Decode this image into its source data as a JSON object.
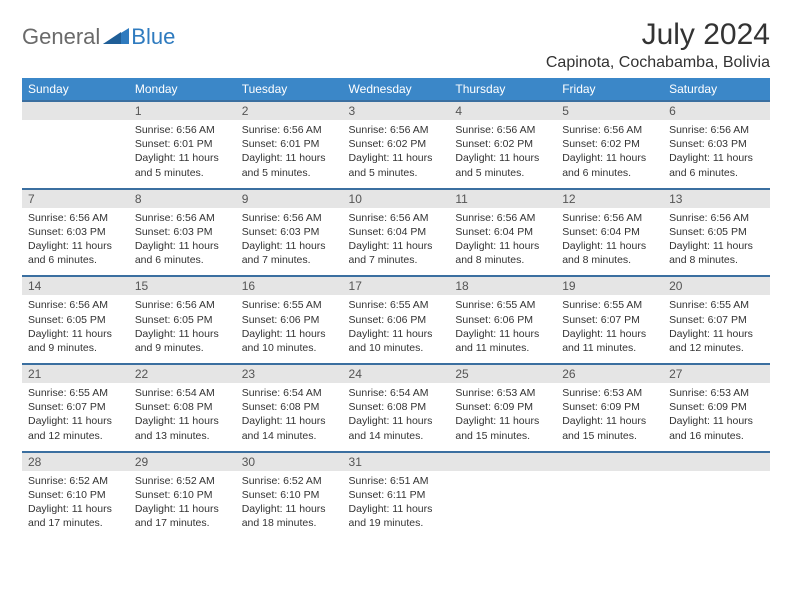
{
  "brand": {
    "word1": "General",
    "word2": "Blue"
  },
  "title": "July 2024",
  "location": "Capinota, Cochabamba, Bolivia",
  "colors": {
    "header_bg": "#3b87c8",
    "header_text": "#ffffff",
    "row_border": "#3b6fa0",
    "daynum_bg": "#e5e5e5",
    "logo_gray": "#6a6a6a",
    "logo_blue": "#2f7bbf"
  },
  "day_names": [
    "Sunday",
    "Monday",
    "Tuesday",
    "Wednesday",
    "Thursday",
    "Friday",
    "Saturday"
  ],
  "weeks": [
    [
      {
        "n": "",
        "lines": []
      },
      {
        "n": "1",
        "lines": [
          "Sunrise: 6:56 AM",
          "Sunset: 6:01 PM",
          "Daylight: 11 hours and 5 minutes."
        ]
      },
      {
        "n": "2",
        "lines": [
          "Sunrise: 6:56 AM",
          "Sunset: 6:01 PM",
          "Daylight: 11 hours and 5 minutes."
        ]
      },
      {
        "n": "3",
        "lines": [
          "Sunrise: 6:56 AM",
          "Sunset: 6:02 PM",
          "Daylight: 11 hours and 5 minutes."
        ]
      },
      {
        "n": "4",
        "lines": [
          "Sunrise: 6:56 AM",
          "Sunset: 6:02 PM",
          "Daylight: 11 hours and 5 minutes."
        ]
      },
      {
        "n": "5",
        "lines": [
          "Sunrise: 6:56 AM",
          "Sunset: 6:02 PM",
          "Daylight: 11 hours and 6 minutes."
        ]
      },
      {
        "n": "6",
        "lines": [
          "Sunrise: 6:56 AM",
          "Sunset: 6:03 PM",
          "Daylight: 11 hours and 6 minutes."
        ]
      }
    ],
    [
      {
        "n": "7",
        "lines": [
          "Sunrise: 6:56 AM",
          "Sunset: 6:03 PM",
          "Daylight: 11 hours and 6 minutes."
        ]
      },
      {
        "n": "8",
        "lines": [
          "Sunrise: 6:56 AM",
          "Sunset: 6:03 PM",
          "Daylight: 11 hours and 6 minutes."
        ]
      },
      {
        "n": "9",
        "lines": [
          "Sunrise: 6:56 AM",
          "Sunset: 6:03 PM",
          "Daylight: 11 hours and 7 minutes."
        ]
      },
      {
        "n": "10",
        "lines": [
          "Sunrise: 6:56 AM",
          "Sunset: 6:04 PM",
          "Daylight: 11 hours and 7 minutes."
        ]
      },
      {
        "n": "11",
        "lines": [
          "Sunrise: 6:56 AM",
          "Sunset: 6:04 PM",
          "Daylight: 11 hours and 8 minutes."
        ]
      },
      {
        "n": "12",
        "lines": [
          "Sunrise: 6:56 AM",
          "Sunset: 6:04 PM",
          "Daylight: 11 hours and 8 minutes."
        ]
      },
      {
        "n": "13",
        "lines": [
          "Sunrise: 6:56 AM",
          "Sunset: 6:05 PM",
          "Daylight: 11 hours and 8 minutes."
        ]
      }
    ],
    [
      {
        "n": "14",
        "lines": [
          "Sunrise: 6:56 AM",
          "Sunset: 6:05 PM",
          "Daylight: 11 hours and 9 minutes."
        ]
      },
      {
        "n": "15",
        "lines": [
          "Sunrise: 6:56 AM",
          "Sunset: 6:05 PM",
          "Daylight: 11 hours and 9 minutes."
        ]
      },
      {
        "n": "16",
        "lines": [
          "Sunrise: 6:55 AM",
          "Sunset: 6:06 PM",
          "Daylight: 11 hours and 10 minutes."
        ]
      },
      {
        "n": "17",
        "lines": [
          "Sunrise: 6:55 AM",
          "Sunset: 6:06 PM",
          "Daylight: 11 hours and 10 minutes."
        ]
      },
      {
        "n": "18",
        "lines": [
          "Sunrise: 6:55 AM",
          "Sunset: 6:06 PM",
          "Daylight: 11 hours and 11 minutes."
        ]
      },
      {
        "n": "19",
        "lines": [
          "Sunrise: 6:55 AM",
          "Sunset: 6:07 PM",
          "Daylight: 11 hours and 11 minutes."
        ]
      },
      {
        "n": "20",
        "lines": [
          "Sunrise: 6:55 AM",
          "Sunset: 6:07 PM",
          "Daylight: 11 hours and 12 minutes."
        ]
      }
    ],
    [
      {
        "n": "21",
        "lines": [
          "Sunrise: 6:55 AM",
          "Sunset: 6:07 PM",
          "Daylight: 11 hours and 12 minutes."
        ]
      },
      {
        "n": "22",
        "lines": [
          "Sunrise: 6:54 AM",
          "Sunset: 6:08 PM",
          "Daylight: 11 hours and 13 minutes."
        ]
      },
      {
        "n": "23",
        "lines": [
          "Sunrise: 6:54 AM",
          "Sunset: 6:08 PM",
          "Daylight: 11 hours and 14 minutes."
        ]
      },
      {
        "n": "24",
        "lines": [
          "Sunrise: 6:54 AM",
          "Sunset: 6:08 PM",
          "Daylight: 11 hours and 14 minutes."
        ]
      },
      {
        "n": "25",
        "lines": [
          "Sunrise: 6:53 AM",
          "Sunset: 6:09 PM",
          "Daylight: 11 hours and 15 minutes."
        ]
      },
      {
        "n": "26",
        "lines": [
          "Sunrise: 6:53 AM",
          "Sunset: 6:09 PM",
          "Daylight: 11 hours and 15 minutes."
        ]
      },
      {
        "n": "27",
        "lines": [
          "Sunrise: 6:53 AM",
          "Sunset: 6:09 PM",
          "Daylight: 11 hours and 16 minutes."
        ]
      }
    ],
    [
      {
        "n": "28",
        "lines": [
          "Sunrise: 6:52 AM",
          "Sunset: 6:10 PM",
          "Daylight: 11 hours and 17 minutes."
        ]
      },
      {
        "n": "29",
        "lines": [
          "Sunrise: 6:52 AM",
          "Sunset: 6:10 PM",
          "Daylight: 11 hours and 17 minutes."
        ]
      },
      {
        "n": "30",
        "lines": [
          "Sunrise: 6:52 AM",
          "Sunset: 6:10 PM",
          "Daylight: 11 hours and 18 minutes."
        ]
      },
      {
        "n": "31",
        "lines": [
          "Sunrise: 6:51 AM",
          "Sunset: 6:11 PM",
          "Daylight: 11 hours and 19 minutes."
        ]
      },
      {
        "n": "",
        "lines": []
      },
      {
        "n": "",
        "lines": []
      },
      {
        "n": "",
        "lines": []
      }
    ]
  ]
}
